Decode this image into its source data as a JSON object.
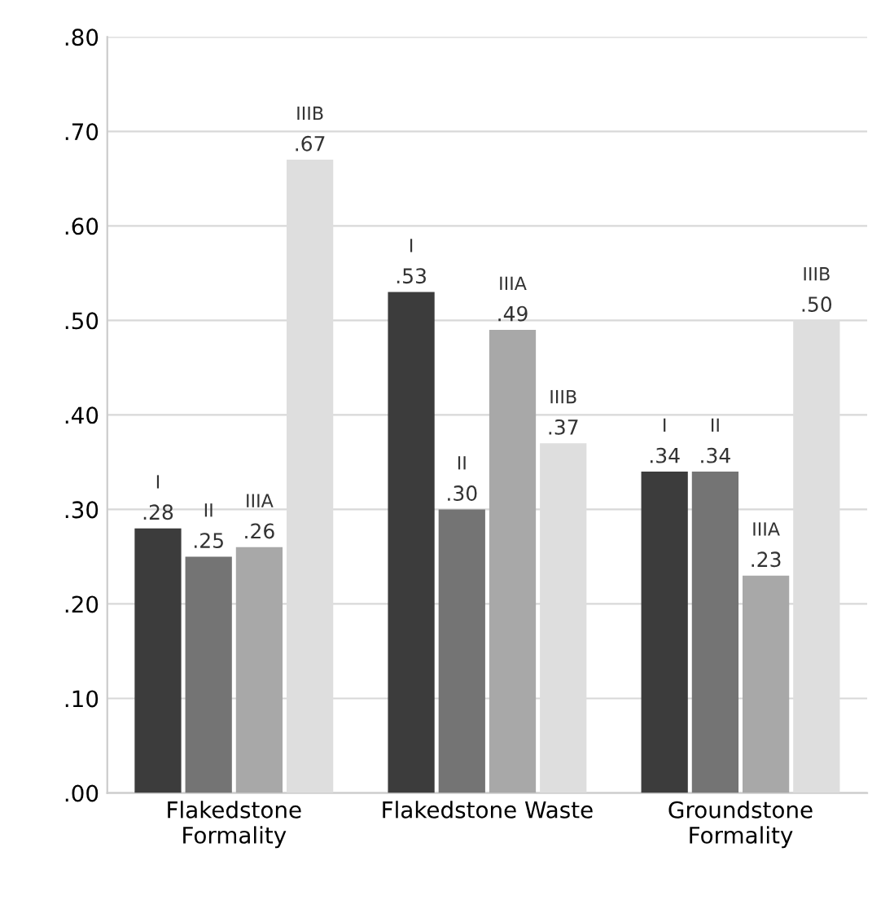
{
  "chart_data": {
    "type": "bar",
    "categories": [
      "Flakedstone\nFormality",
      "Flakedstone Waste",
      "Groundstone\nFormality"
    ],
    "series": [
      {
        "name": "I",
        "color": "#3c3c3c",
        "values": [
          0.28,
          0.53,
          0.34
        ],
        "value_labels": [
          ".28",
          ".53",
          ".34"
        ]
      },
      {
        "name": "II",
        "color": "#747474",
        "values": [
          0.25,
          0.3,
          0.34
        ],
        "value_labels": [
          ".25",
          ".30",
          ".34"
        ]
      },
      {
        "name": "IIIA",
        "color": "#a8a8a8",
        "values": [
          0.26,
          0.49,
          0.23
        ],
        "value_labels": [
          ".26",
          ".49",
          ".23"
        ]
      },
      {
        "name": "IIIB",
        "color": "#dedede",
        "values": [
          0.67,
          0.37,
          0.5
        ],
        "value_labels": [
          ".67",
          ".37",
          ".50"
        ]
      }
    ],
    "ylim": [
      0,
      0.8
    ],
    "yticks": [
      {
        "value": 0,
        "label": ".00"
      },
      {
        "value": 0.1,
        "label": ".10"
      },
      {
        "value": 0.2,
        "label": ".20"
      },
      {
        "value": 0.3,
        "label": ".30"
      },
      {
        "value": 0.4,
        "label": ".40"
      },
      {
        "value": 0.5,
        "label": ".50"
      },
      {
        "value": 0.6,
        "label": ".60"
      },
      {
        "value": 0.7,
        "label": ".70"
      },
      {
        "value": 0.8,
        "label": ".80"
      }
    ],
    "grid": "y",
    "legend": false
  }
}
